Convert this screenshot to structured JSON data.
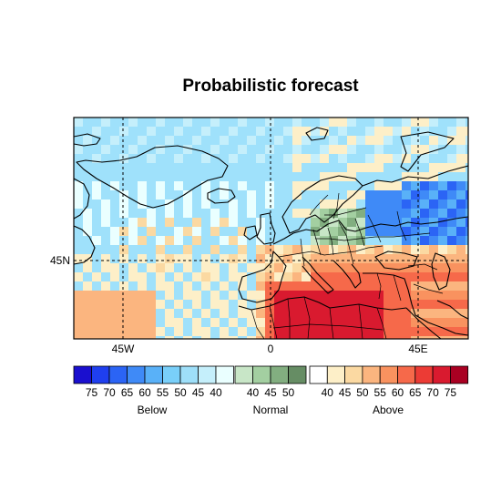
{
  "title": "Probabilistic forecast",
  "map": {
    "lon_range": [
      -75,
      60
    ],
    "lat_range": [
      15,
      90
    ],
    "gridlines_dashed": true,
    "x_ticks": [
      {
        "lon": -45,
        "label": "45W"
      },
      {
        "lon": 0,
        "label": "0"
      },
      {
        "lon": 45,
        "label": "45E"
      }
    ],
    "y_ticks": [
      {
        "lat": 45,
        "label": "45N"
      }
    ],
    "features": [
      "coastlines",
      "country-borders"
    ]
  },
  "legend": {
    "below": {
      "title": "Below",
      "colors": [
        "#1a0fcf",
        "#1f3fef",
        "#2b64f5",
        "#3f8af7",
        "#59b1f8",
        "#79cff9",
        "#9edff9",
        "#c5effb",
        "#eaffff"
      ],
      "labels": [
        "75",
        "70",
        "65",
        "60",
        "55",
        "50",
        "45",
        "40"
      ]
    },
    "normal": {
      "title": "Normal",
      "colors": [
        "#c8e6c7",
        "#a3cfa1",
        "#82ae80",
        "#668d64"
      ],
      "labels": [
        "40",
        "45",
        "50"
      ]
    },
    "above": {
      "title": "Above",
      "colors": [
        "#ffffff",
        "#fdefc8",
        "#fbd9a2",
        "#fbb57f",
        "#f9925f",
        "#f6694a",
        "#ec3b35",
        "#d91a2f",
        "#a90022"
      ],
      "labels": [
        "40",
        "45",
        "50",
        "55",
        "60",
        "65",
        "70",
        "75"
      ]
    }
  },
  "colors": {
    "ocean_light_blue": "#9fe1fb",
    "land_pale": "#eaffff",
    "map_border": "#000000"
  }
}
